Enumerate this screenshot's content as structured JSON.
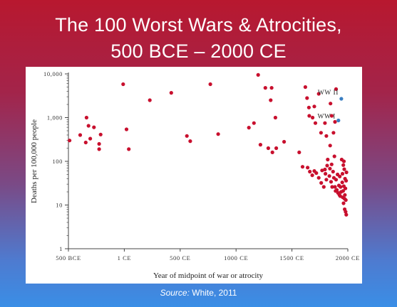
{
  "slide": {
    "title_line1": "The 100 Worst Wars & Atrocities,",
    "title_line2": "500 BCE – 2000 CE",
    "source_label": "Source:",
    "source_text": "White, 2011"
  },
  "colors": {
    "point": "#c8102e",
    "highlight": "#3a7ec1",
    "axis": "#444444"
  },
  "chart_data": {
    "type": "scatter",
    "title": "",
    "xlabel": "Year of  midpoint of war or atrocity",
    "ylabel": "Deaths per 100,000 people",
    "xlim": [
      -500,
      2000
    ],
    "ylim": [
      1,
      10000
    ],
    "yscale": "log",
    "grid": false,
    "xticks": [
      {
        "value": -500,
        "label": "500 BCE"
      },
      {
        "value": 0,
        "label": "1 CE"
      },
      {
        "value": 500,
        "label": "500 CE"
      },
      {
        "value": 1000,
        "label": "1000 CE"
      },
      {
        "value": 1500,
        "label": "1500 CE"
      },
      {
        "value": 2000,
        "label": "2000 CE"
      }
    ],
    "yticks": [
      {
        "value": 1,
        "label": "1"
      },
      {
        "value": 10,
        "label": "10"
      },
      {
        "value": 100,
        "label": "100"
      },
      {
        "value": 1000,
        "label": "1,000"
      },
      {
        "value": 10000,
        "label": "10,000"
      }
    ],
    "annotations": [
      {
        "label": "WW II",
        "x": 1942,
        "y": 2700
      },
      {
        "label": "WW I",
        "x": 1916,
        "y": 860
      }
    ],
    "series": [
      {
        "color": "#c8102e",
        "points": [
          [
            -490,
            300
          ],
          [
            -395,
            400
          ],
          [
            -345,
            270
          ],
          [
            -338,
            1000
          ],
          [
            -320,
            650
          ],
          [
            -305,
            330
          ],
          [
            -272,
            600
          ],
          [
            -225,
            190
          ],
          [
            -225,
            250
          ],
          [
            -212,
            410
          ],
          [
            -10,
            5800
          ],
          [
            20,
            540
          ],
          [
            40,
            190
          ],
          [
            228,
            2500
          ],
          [
            420,
            3700
          ],
          [
            560,
            380
          ],
          [
            590,
            290
          ],
          [
            770,
            5800
          ],
          [
            840,
            420
          ],
          [
            1115,
            590
          ],
          [
            1160,
            750
          ],
          [
            1198,
            9500
          ],
          [
            1218,
            240
          ],
          [
            1262,
            4800
          ],
          [
            1288,
            200
          ],
          [
            1310,
            2500
          ],
          [
            1318,
            4800
          ],
          [
            1325,
            160
          ],
          [
            1352,
            1000
          ],
          [
            1360,
            200
          ],
          [
            1430,
            280
          ],
          [
            1565,
            160
          ],
          [
            1620,
            5000
          ],
          [
            1635,
            2800
          ],
          [
            1652,
            1700
          ],
          [
            1655,
            1100
          ],
          [
            1685,
            1000
          ],
          [
            1700,
            1800
          ],
          [
            1710,
            750
          ],
          [
            1740,
            3500
          ],
          [
            1760,
            450
          ],
          [
            1795,
            750
          ],
          [
            1808,
            380
          ],
          [
            1842,
            230
          ],
          [
            1845,
            2100
          ],
          [
            1856,
            1100
          ],
          [
            1872,
            450
          ],
          [
            1885,
            800
          ],
          [
            1895,
            4500
          ],
          [
            1595,
            75
          ],
          [
            1640,
            72
          ],
          [
            1660,
            58
          ],
          [
            1682,
            48
          ],
          [
            1700,
            60
          ],
          [
            1718,
            54
          ],
          [
            1740,
            42
          ],
          [
            1762,
            32
          ],
          [
            1770,
            62
          ],
          [
            1785,
            26
          ],
          [
            1795,
            65
          ],
          [
            1800,
            52
          ],
          [
            1808,
            38
          ],
          [
            1815,
            80
          ],
          [
            1820,
            110
          ],
          [
            1835,
            46
          ],
          [
            1840,
            68
          ],
          [
            1850,
            34
          ],
          [
            1855,
            85
          ],
          [
            1860,
            26
          ],
          [
            1868,
            58
          ],
          [
            1875,
            42
          ],
          [
            1880,
            130
          ],
          [
            1885,
            26
          ],
          [
            1890,
            21
          ],
          [
            1895,
            38
          ],
          [
            1902,
            22
          ],
          [
            1908,
            50
          ],
          [
            1912,
            19
          ],
          [
            1920,
            28
          ],
          [
            1925,
            17
          ],
          [
            1928,
            45
          ],
          [
            1932,
            16
          ],
          [
            1935,
            26
          ],
          [
            1940,
            20
          ],
          [
            1945,
            110
          ],
          [
            1950,
            33
          ],
          [
            1952,
            52
          ],
          [
            1955,
            15
          ],
          [
            1958,
            21
          ],
          [
            1960,
            82
          ],
          [
            1962,
            11
          ],
          [
            1964,
            27
          ],
          [
            1965,
            100
          ],
          [
            1968,
            66
          ],
          [
            1970,
            14
          ],
          [
            1972,
            8
          ],
          [
            1974,
            17
          ],
          [
            1975,
            40
          ],
          [
            1978,
            24
          ],
          [
            1980,
            7
          ],
          [
            1982,
            13
          ],
          [
            1985,
            36
          ],
          [
            1986,
            6
          ],
          [
            1988,
            56
          ]
        ]
      },
      {
        "color": "#3a7ec1",
        "points": [
          [
            1942,
            2700
          ],
          [
            1916,
            860
          ]
        ]
      }
    ]
  }
}
